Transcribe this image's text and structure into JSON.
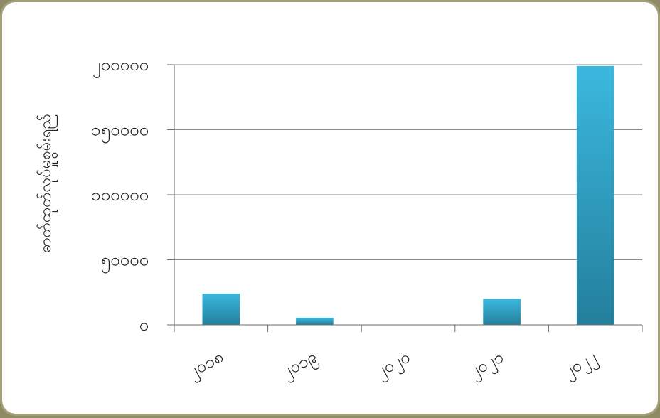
{
  "colors": {
    "bar_top": "#3bb8de",
    "bar_bottom": "#237f9c",
    "grid": "#8c8c8c",
    "axis": "#6e6e6e"
  },
  "chart_data": {
    "type": "bar",
    "title": "",
    "xlabel": "",
    "ylabel": "ဓာတ်ထုတ်လုပ်မှုစွမ်းရည်",
    "categories": [
      "၂၀၁၈",
      "၂၀၁၉",
      "၂၀၂၀",
      "၂၀၂၁",
      "၂၀၂၂"
    ],
    "values": [
      24000,
      5500,
      0,
      20000,
      199000
    ],
    "ylim": [
      0,
      200000
    ],
    "yticks": [
      0,
      50000,
      100000,
      150000,
      200000
    ],
    "ytick_labels": [
      "၀",
      "၅၀၀၀၀",
      "၁၀၀၀၀၀",
      "၁၅၀၀၀၀",
      "၂၀၀၀၀၀"
    ],
    "grid": true,
    "legend": "none"
  }
}
